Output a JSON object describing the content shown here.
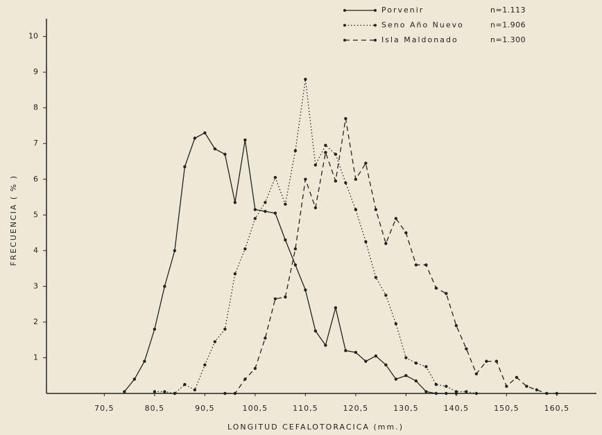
{
  "chart_data": {
    "type": "line",
    "x_label": "LONGITUD   CEFALOTORACICA  (mm.)",
    "y_label": "FRECUENCIA  ( % )",
    "x": [
      74.5,
      76.5,
      78.5,
      80.5,
      82.5,
      84.5,
      86.5,
      88.5,
      90.5,
      92.5,
      94.5,
      96.5,
      98.5,
      100.5,
      102.5,
      104.5,
      106.5,
      108.5,
      110.5,
      112.5,
      114.5,
      116.5,
      118.5,
      120.5,
      122.5,
      124.5,
      126.5,
      128.5,
      130.5,
      132.5,
      134.5,
      136.5,
      138.5,
      140.5,
      142.5,
      144.5,
      146.5,
      148.5,
      150.5,
      152.5,
      154.5,
      156.5,
      158.5,
      160.5,
      162.5
    ],
    "series": [
      {
        "name": "Porvenir",
        "n_label": "n=1.113",
        "color": "#222222",
        "dash": "solid",
        "values": [
          0.05,
          0.4,
          0.9,
          1.8,
          3.0,
          4.0,
          6.35,
          7.15,
          7.3,
          6.85,
          6.7,
          5.35,
          7.1,
          5.15,
          5.1,
          5.05,
          4.3,
          3.6,
          2.9,
          1.75,
          1.35,
          2.4,
          1.2,
          1.15,
          0.9,
          1.05,
          0.8,
          0.4,
          0.5,
          0.35,
          0.05,
          0,
          0,
          0,
          null,
          null,
          null,
          null,
          null,
          null,
          null,
          null,
          null,
          null,
          null
        ]
      },
      {
        "name": "Seno Año Nuevo",
        "n_label": "n=1.906",
        "color": "#222222",
        "dash": "dotted",
        "values": [
          null,
          null,
          null,
          0.05,
          0.05,
          0,
          0.25,
          0.1,
          0.8,
          1.45,
          1.8,
          3.35,
          4.05,
          4.9,
          5.35,
          6.05,
          5.3,
          6.8,
          8.8,
          6.4,
          6.95,
          6.7,
          5.9,
          5.15,
          4.25,
          3.25,
          2.75,
          1.95,
          1.0,
          0.85,
          0.75,
          0.25,
          0.2,
          0.05,
          0.05,
          0,
          null,
          null,
          null,
          null,
          null,
          null,
          null,
          null,
          null
        ]
      },
      {
        "name": "Isla Maldonado",
        "n_label": "n=1.300",
        "color": "#222222",
        "dash": "dashed",
        "values": [
          null,
          null,
          null,
          null,
          null,
          null,
          null,
          null,
          null,
          null,
          0,
          0,
          0.4,
          0.7,
          1.55,
          2.65,
          2.7,
          4.05,
          6.0,
          5.2,
          6.75,
          5.95,
          7.7,
          6.0,
          6.45,
          5.15,
          4.2,
          4.9,
          4.5,
          3.6,
          3.6,
          2.95,
          2.8,
          1.9,
          1.25,
          0.55,
          0.9,
          0.9,
          0.2,
          0.45,
          0.2,
          0.1,
          0,
          0,
          null
        ]
      }
    ],
    "xlim": [
      59,
      167
    ],
    "ylim": [
      0,
      10.4
    ],
    "xticks": [
      {
        "value": 70.5,
        "label": "70,5"
      },
      {
        "value": 80.5,
        "label": "80,5"
      },
      {
        "value": 90.5,
        "label": "90,5"
      },
      {
        "value": 100.5,
        "label": "100,5"
      },
      {
        "value": 110.5,
        "label": "110,5"
      },
      {
        "value": 120.5,
        "label": "120,5"
      },
      {
        "value": 130.5,
        "label": "130,5"
      },
      {
        "value": 140.5,
        "label": "140,5"
      },
      {
        "value": 150.5,
        "label": "150,5"
      },
      {
        "value": 160.5,
        "label": "160,5"
      }
    ],
    "yticks": [
      1,
      2,
      3,
      4,
      5,
      6,
      7,
      8,
      9,
      10
    ],
    "legend": "top-right",
    "grid": false
  }
}
